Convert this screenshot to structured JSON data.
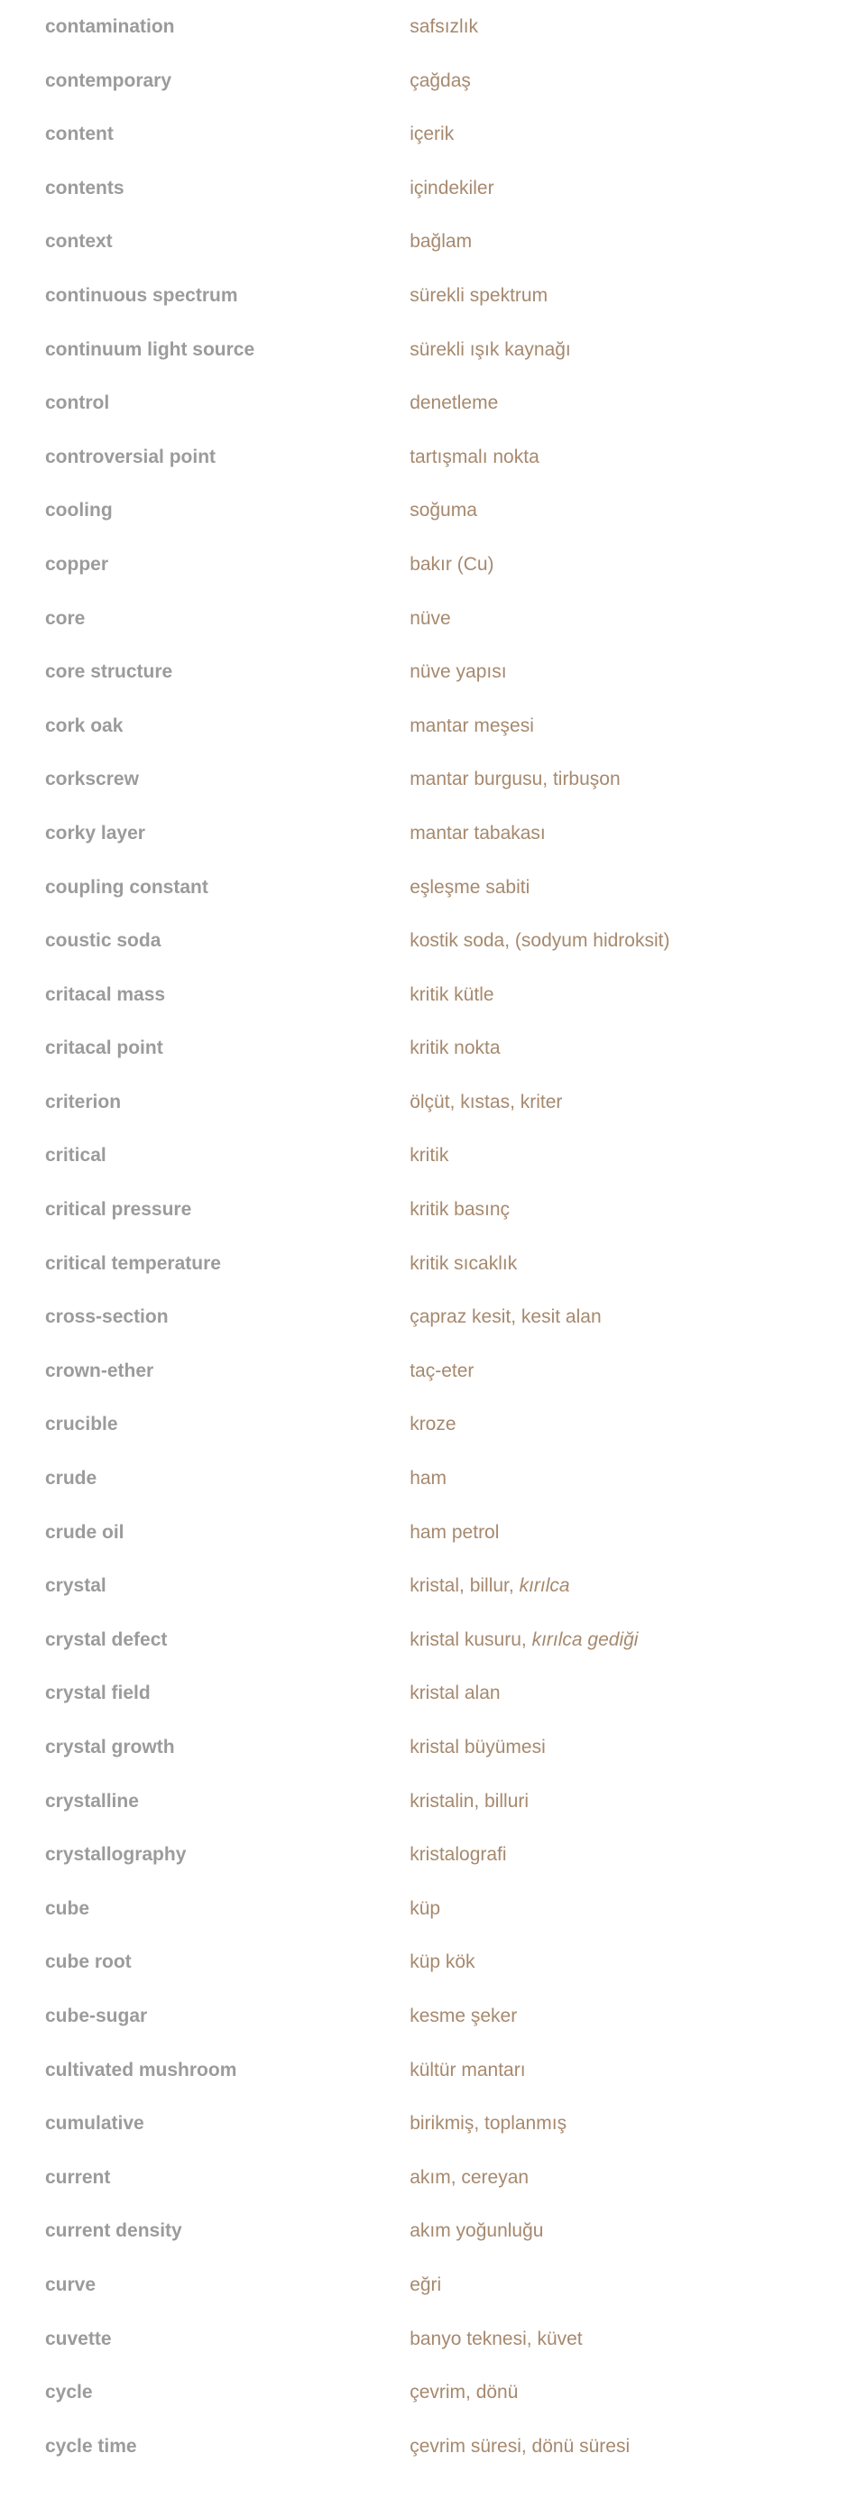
{
  "colors": {
    "english": "#9b9b9b",
    "turkish": "#a6896e",
    "background": "#ffffff"
  },
  "rows": [
    {
      "en": "contamination",
      "tr": [
        {
          "text": "safsızlık"
        }
      ]
    },
    {
      "en": "contemporary",
      "tr": [
        {
          "text": "çağdaş"
        }
      ]
    },
    {
      "en": "content",
      "tr": [
        {
          "text": "içerik"
        }
      ]
    },
    {
      "en": "contents",
      "tr": [
        {
          "text": "içindekiler"
        }
      ]
    },
    {
      "en": "context",
      "tr": [
        {
          "text": "bağlam"
        }
      ]
    },
    {
      "en": "continuous spectrum",
      "tr": [
        {
          "text": "sürekli spektrum"
        }
      ]
    },
    {
      "en": "continuum light source",
      "tr": [
        {
          "text": "sürekli ışık kaynağı"
        }
      ]
    },
    {
      "en": "control",
      "tr": [
        {
          "text": "denetleme"
        }
      ]
    },
    {
      "en": "controversial point",
      "tr": [
        {
          "text": "tartışmalı nokta"
        }
      ]
    },
    {
      "en": "cooling",
      "tr": [
        {
          "text": "soğuma"
        }
      ]
    },
    {
      "en": "copper",
      "tr": [
        {
          "text": "bakır (Cu)"
        }
      ]
    },
    {
      "en": "core",
      "tr": [
        {
          "text": "nüve"
        }
      ]
    },
    {
      "en": "core structure",
      "tr": [
        {
          "text": "nüve yapısı"
        }
      ]
    },
    {
      "en": "cork oak",
      "tr": [
        {
          "text": "mantar meşesi"
        }
      ]
    },
    {
      "en": "corkscrew",
      "tr": [
        {
          "text": "mantar burgusu, tirbuşon"
        }
      ]
    },
    {
      "en": "corky layer",
      "tr": [
        {
          "text": "mantar tabakası"
        }
      ]
    },
    {
      "en": "coupling constant",
      "tr": [
        {
          "text": "eşleşme sabiti"
        }
      ]
    },
    {
      "en": "coustic soda",
      "tr": [
        {
          "text": "kostik soda, (sodyum hidroksit)"
        }
      ]
    },
    {
      "en": "critacal mass",
      "tr": [
        {
          "text": "kritik kütle"
        }
      ]
    },
    {
      "en": "critacal point",
      "tr": [
        {
          "text": "kritik nokta"
        }
      ]
    },
    {
      "en": "criterion",
      "tr": [
        {
          "text": "ölçüt, kıstas, kriter"
        }
      ]
    },
    {
      "en": "critical",
      "tr": [
        {
          "text": "kritik"
        }
      ]
    },
    {
      "en": "critical pressure",
      "tr": [
        {
          "text": "kritik basınç"
        }
      ]
    },
    {
      "en": "critical temperature",
      "tr": [
        {
          "text": "kritik sıcaklık"
        }
      ]
    },
    {
      "en": "cross-section",
      "tr": [
        {
          "text": "çapraz kesit, kesit alan"
        }
      ]
    },
    {
      "en": "crown-ether",
      "tr": [
        {
          "text": "taç-eter"
        }
      ]
    },
    {
      "en": "crucible",
      "tr": [
        {
          "text": "kroze"
        }
      ]
    },
    {
      "en": "crude",
      "tr": [
        {
          "text": "ham"
        }
      ]
    },
    {
      "en": "crude oil",
      "tr": [
        {
          "text": "ham petrol"
        }
      ]
    },
    {
      "en": "crystal",
      "tr": [
        {
          "text": "kristal, billur, "
        },
        {
          "text": "kırılca",
          "italic": true
        }
      ]
    },
    {
      "en": "crystal defect",
      "tr": [
        {
          "text": "kristal kusuru, "
        },
        {
          "text": "kırılca gediği",
          "italic": true
        }
      ]
    },
    {
      "en": "crystal field",
      "tr": [
        {
          "text": "kristal alan"
        }
      ]
    },
    {
      "en": "crystal growth",
      "tr": [
        {
          "text": "kristal büyümesi"
        }
      ]
    },
    {
      "en": "crystalline",
      "tr": [
        {
          "text": "kristalin, billuri"
        }
      ]
    },
    {
      "en": "crystallography",
      "tr": [
        {
          "text": "kristalografi"
        }
      ]
    },
    {
      "en": "cube",
      "tr": [
        {
          "text": "küp"
        }
      ]
    },
    {
      "en": "cube root",
      "tr": [
        {
          "text": "küp kök"
        }
      ]
    },
    {
      "en": "cube-sugar",
      "tr": [
        {
          "text": "kesme şeker"
        }
      ]
    },
    {
      "en": "cultivated mushroom",
      "tr": [
        {
          "text": "kültür mantarı"
        }
      ]
    },
    {
      "en": "cumulative",
      "tr": [
        {
          "text": "birikmiş, toplanmış"
        }
      ]
    },
    {
      "en": "current",
      "tr": [
        {
          "text": "akım, cereyan"
        }
      ]
    },
    {
      "en": "current density",
      "tr": [
        {
          "text": "akım yoğunluğu"
        }
      ]
    },
    {
      "en": "curve",
      "tr": [
        {
          "text": "eğri"
        }
      ]
    },
    {
      "en": "cuvette",
      "tr": [
        {
          "text": "banyo teknesi, küvet"
        }
      ]
    },
    {
      "en": "cycle",
      "tr": [
        {
          "text": "çevrim, dönü"
        }
      ]
    },
    {
      "en": "cycle time",
      "tr": [
        {
          "text": "çevrim süresi, dönü süresi"
        }
      ]
    }
  ]
}
